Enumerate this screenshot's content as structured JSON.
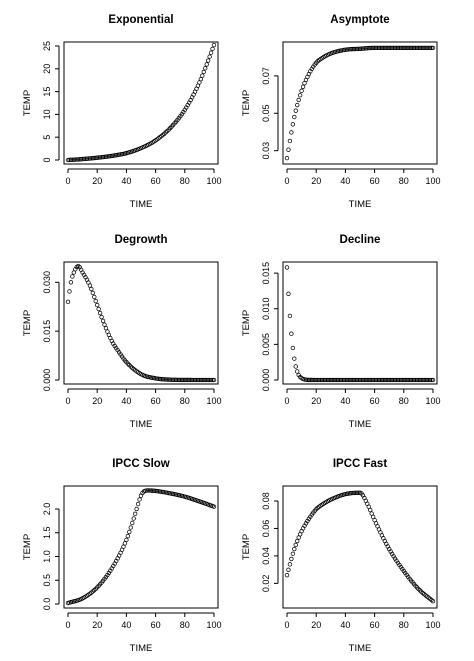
{
  "chart_data": [
    {
      "type": "scatter",
      "title": "Exponential",
      "xlabel": "TIME",
      "ylabel": "TEMP",
      "xlim": [
        0,
        100
      ],
      "ylim": [
        0,
        25
      ],
      "xticks": [
        0,
        20,
        40,
        60,
        80,
        100
      ],
      "yticks": [
        0,
        5,
        10,
        15,
        20,
        25
      ],
      "x": [
        0,
        10,
        20,
        30,
        40,
        50,
        60,
        70,
        80,
        90,
        100
      ],
      "y": [
        0,
        0.2,
        0.5,
        0.9,
        1.5,
        2.6,
        4.3,
        7.0,
        11.0,
        17.0,
        25.2
      ]
    },
    {
      "type": "scatter",
      "title": "Asymptote",
      "xlabel": "TIME",
      "ylabel": "TEMP",
      "xlim": [
        0,
        100
      ],
      "ylim": [
        0.025,
        0.086
      ],
      "xticks": [
        0,
        20,
        40,
        60,
        80,
        100
      ],
      "yticks": [
        0.03,
        0.05,
        0.07
      ],
      "x": [
        0,
        5,
        10,
        15,
        20,
        25,
        30,
        40,
        50,
        60,
        80,
        100
      ],
      "y": [
        0.026,
        0.048,
        0.062,
        0.071,
        0.077,
        0.08,
        0.082,
        0.084,
        0.0845,
        0.085,
        0.085,
        0.085
      ]
    },
    {
      "type": "scatter",
      "title": "Degrowth",
      "xlabel": "TIME",
      "ylabel": "TEMP",
      "xlim": [
        0,
        100
      ],
      "ylim": [
        0,
        0.035
      ],
      "xticks": [
        0,
        20,
        40,
        60,
        80,
        100
      ],
      "yticks": [
        0,
        0.015,
        0.03
      ],
      "ytick_labels": [
        "0.000",
        "0.015",
        "0.030"
      ],
      "x": [
        0,
        2,
        4,
        7,
        10,
        15,
        20,
        25,
        30,
        35,
        40,
        50,
        60,
        70,
        80,
        90,
        100
      ],
      "y": [
        0.024,
        0.03,
        0.033,
        0.035,
        0.033,
        0.029,
        0.023,
        0.017,
        0.012,
        0.0085,
        0.0055,
        0.0018,
        0.0005,
        0.0001,
        2e-05,
        0,
        0
      ]
    },
    {
      "type": "scatter",
      "title": "Decline",
      "xlabel": "TIME",
      "ylabel": "TEMP",
      "xlim": [
        0,
        100
      ],
      "ylim": [
        0,
        0.016
      ],
      "xticks": [
        0,
        20,
        40,
        60,
        80,
        100
      ],
      "yticks": [
        0,
        0.005,
        0.01,
        0.015
      ],
      "ytick_labels": [
        "0.000",
        "0.005",
        "0.010",
        "0.015"
      ],
      "x": [
        0,
        1,
        2,
        3,
        4,
        5,
        6,
        7,
        8,
        10,
        12,
        15,
        20,
        30,
        50,
        100
      ],
      "y": [
        0.0158,
        0.0121,
        0.009,
        0.0065,
        0.0045,
        0.003,
        0.0019,
        0.0012,
        0.0007,
        0.00025,
        8e-05,
        1e-05,
        0,
        0,
        0,
        0
      ]
    },
    {
      "type": "scatter",
      "title": "IPCC Slow",
      "xlabel": "TIME",
      "ylabel": "TEMP",
      "xlim": [
        0,
        100
      ],
      "ylim": [
        0,
        2.4
      ],
      "xticks": [
        0,
        20,
        40,
        60,
        80,
        100
      ],
      "yticks": [
        0,
        0.5,
        1,
        1.5,
        2
      ],
      "ytick_labels": [
        "0.0",
        "0.5",
        "1.0",
        "1.5",
        "2.0"
      ],
      "x": [
        0,
        10,
        20,
        30,
        40,
        45,
        50,
        52,
        55,
        60,
        70,
        80,
        90,
        100
      ],
      "y": [
        0.02,
        0.12,
        0.35,
        0.75,
        1.35,
        1.8,
        2.28,
        2.37,
        2.39,
        2.38,
        2.33,
        2.26,
        2.16,
        2.05
      ]
    },
    {
      "type": "scatter",
      "title": "IPCC Fast",
      "xlabel": "TIME",
      "ylabel": "TEMP",
      "xlim": [
        0,
        100
      ],
      "ylim": [
        0.005,
        0.088
      ],
      "xticks": [
        0,
        20,
        40,
        60,
        80,
        100
      ],
      "yticks": [
        0.02,
        0.04,
        0.06,
        0.08
      ],
      "x": [
        0,
        5,
        10,
        15,
        20,
        25,
        30,
        40,
        50,
        55,
        60,
        70,
        80,
        90,
        100
      ],
      "y": [
        0.026,
        0.045,
        0.058,
        0.067,
        0.074,
        0.078,
        0.081,
        0.085,
        0.086,
        0.078,
        0.066,
        0.045,
        0.029,
        0.016,
        0.007
      ]
    }
  ]
}
